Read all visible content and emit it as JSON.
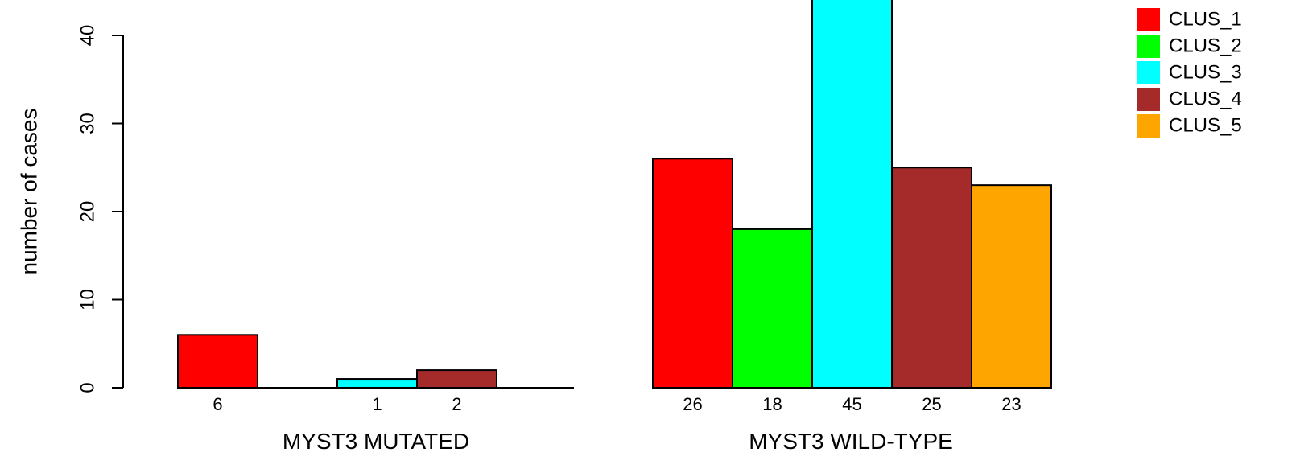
{
  "chart_data": {
    "type": "bar",
    "ylabel": "number of cases",
    "ylim": [
      0,
      45
    ],
    "yticks": [
      0,
      10,
      20,
      30,
      40
    ],
    "series_names": [
      "CLUS_1",
      "CLUS_2",
      "CLUS_3",
      "CLUS_4",
      "CLUS_5"
    ],
    "colors": [
      "#ff0000",
      "#00ff00",
      "#00ffff",
      "#a52a2a",
      "#ffa500"
    ],
    "groups": [
      {
        "label": "MYST3 MUTATED",
        "values": [
          6,
          0,
          1,
          2,
          0
        ]
      },
      {
        "label": "MYST3 WILD-TYPE",
        "values": [
          26,
          18,
          45,
          25,
          23
        ]
      }
    ],
    "legend_position": "top-right",
    "grid": false
  }
}
